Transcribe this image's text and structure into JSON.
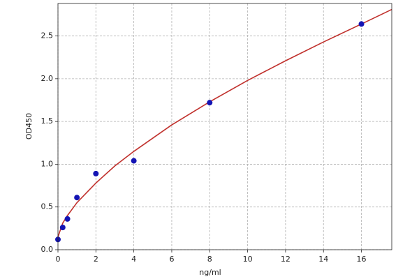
{
  "chart_data": {
    "type": "scatter",
    "xlabel": "ng/ml",
    "ylabel": "OD450",
    "xlim": [
      0,
      17.6
    ],
    "ylim": [
      0,
      2.88
    ],
    "xticks": [
      0,
      2,
      4,
      6,
      8,
      10,
      12,
      14,
      16
    ],
    "yticks": [
      {
        "value": 0,
        "label": "0.0"
      },
      {
        "value": 0.5,
        "label": "0.5"
      },
      {
        "value": 1,
        "label": "1.0"
      },
      {
        "value": 1.5,
        "label": "1.5"
      },
      {
        "value": 2,
        "label": "2.0"
      },
      {
        "value": 2.5,
        "label": "2.5"
      }
    ],
    "grid": true,
    "points": {
      "color": "#1414b4",
      "x": [
        0,
        0.25,
        0.5,
        1,
        2,
        4,
        8,
        16
      ],
      "y": [
        0.12,
        0.26,
        0.36,
        0.61,
        0.89,
        1.04,
        1.72,
        2.64
      ]
    },
    "fit": {
      "color": "#c0302c",
      "x": [
        0,
        0.25,
        0.5,
        1,
        2,
        3,
        4,
        6,
        8,
        10,
        12,
        14,
        16,
        17.6
      ],
      "y": [
        0.15,
        0.31,
        0.4,
        0.55,
        0.78,
        0.98,
        1.15,
        1.46,
        1.73,
        1.98,
        2.21,
        2.43,
        2.64,
        2.81
      ]
    }
  }
}
